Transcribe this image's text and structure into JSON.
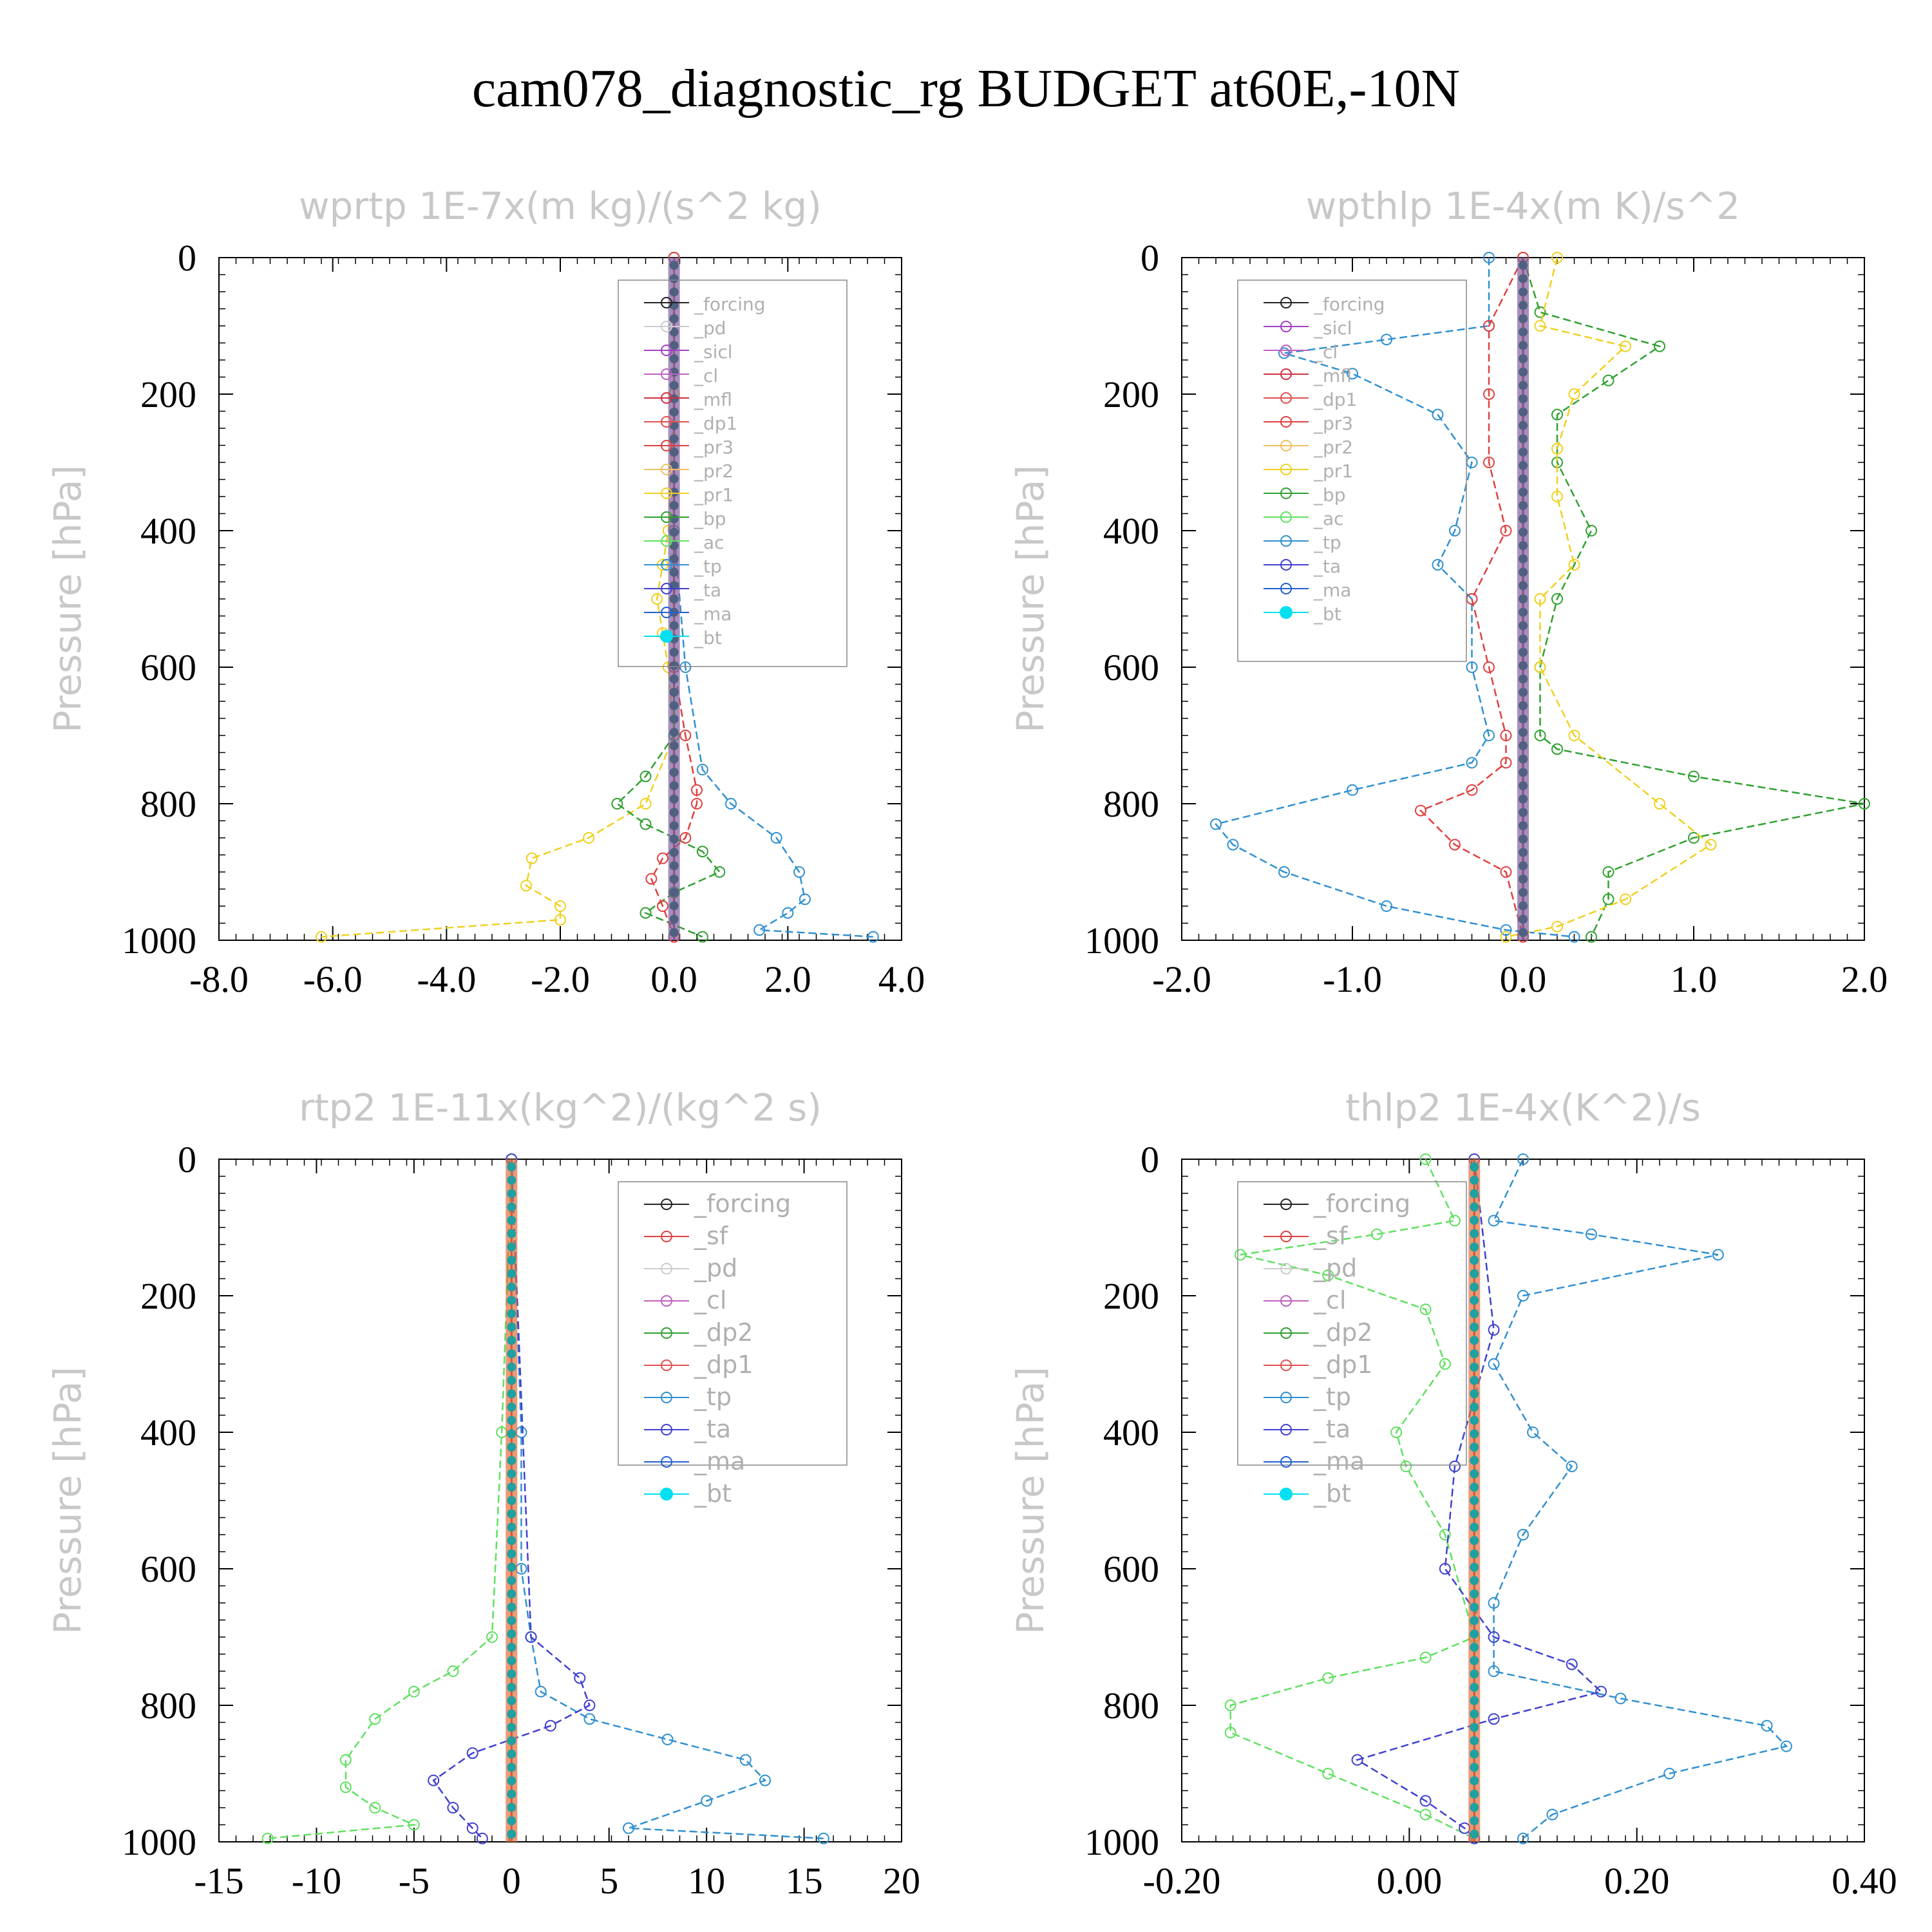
{
  "figure_title": "cam078_diagnostic_rg  BUDGET at60E,-10N",
  "colors": {
    "forcing": "#222222",
    "pd": "#cccccc",
    "sicl": "#a040c0",
    "cl": "#c060c0",
    "mfl": "#d03040",
    "dp1": "#e05050",
    "pr3": "#e04040",
    "pr2": "#f0c060",
    "pr1": "#f0d020",
    "bp": "#30a030",
    "ac": "#60e060",
    "tp": "#3090d0",
    "ta": "#4040d0",
    "ma": "#2060d0",
    "bt": "#00e0f0",
    "sf": "#e04040",
    "dp2": "#30a030",
    "zero_line": "#c02020"
  },
  "chart_data": [
    {
      "type": "line",
      "title": "wprtp  1E-7x(m kg)/(s^2 kg)",
      "ylabel": "Pressure [hPa]",
      "xlim": [
        -8,
        4
      ],
      "ylim": [
        1000,
        0
      ],
      "xticks": [
        "-8.0",
        "-6.0",
        "-4.0",
        "-2.0",
        "0.0",
        "2.0",
        "4.0"
      ],
      "yticks": [
        "0",
        "200",
        "400",
        "600",
        "800",
        "1000"
      ],
      "legend": [
        "_forcing",
        "_pd",
        "_sicl",
        "_cl",
        "_mfl",
        "_dp1",
        "_pr3",
        "_pr2",
        "_pr1",
        "_bp",
        "_ac",
        "_tp",
        "_ta",
        "_ma",
        "_bt"
      ],
      "series": [
        {
          "name": "_pr1",
          "key": "pr1",
          "x": [
            0,
            0,
            -0.1,
            -0.2,
            -0.3,
            -0.2,
            -0.1,
            0,
            -0.5,
            -1.5,
            -2.5,
            -2.6,
            -2,
            -2,
            -6.2
          ],
          "y": [
            0,
            200,
            400,
            450,
            500,
            550,
            600,
            700,
            800,
            850,
            880,
            920,
            950,
            970,
            995
          ]
        },
        {
          "name": "_bp",
          "key": "bp",
          "x": [
            0,
            0,
            0,
            -0.5,
            -1,
            -0.5,
            0.5,
            0.8,
            0,
            -0.5,
            0.5
          ],
          "y": [
            0,
            600,
            700,
            760,
            800,
            830,
            870,
            900,
            930,
            960,
            995
          ]
        },
        {
          "name": "_tp",
          "key": "tp",
          "x": [
            0,
            0,
            0.2,
            0.5,
            1,
            1.8,
            2.2,
            2.3,
            2,
            1.5,
            3.5
          ],
          "y": [
            0,
            400,
            600,
            750,
            800,
            850,
            900,
            940,
            960,
            985,
            995
          ]
        },
        {
          "name": "_pr3",
          "key": "pr3",
          "x": [
            0,
            0,
            0.2,
            0.4,
            0.4,
            0.2,
            -0.2,
            -0.4,
            -0.2,
            0
          ],
          "y": [
            0,
            600,
            700,
            780,
            800,
            850,
            880,
            910,
            950,
            995
          ]
        },
        {
          "name": "_bt",
          "key": "bt",
          "x": [
            0,
            0
          ],
          "y": [
            0,
            995
          ]
        }
      ]
    },
    {
      "type": "line",
      "title": "wpthlp  1E-4x(m K)/s^2",
      "ylabel": "Pressure [hPa]",
      "xlim": [
        -2,
        2
      ],
      "ylim": [
        1000,
        0
      ],
      "xticks": [
        "-2.0",
        "-1.0",
        "0.0",
        "1.0",
        "2.0"
      ],
      "yticks": [
        "0",
        "200",
        "400",
        "600",
        "800",
        "1000"
      ],
      "legend": [
        "_forcing",
        "_sicl",
        "_cl",
        "_mfl",
        "_dp1",
        "_pr3",
        "_pr2",
        "_pr1",
        "_bp",
        "_ac",
        "_tp",
        "_ta",
        "_ma",
        "_bt"
      ],
      "series": [
        {
          "name": "_tp",
          "key": "tp",
          "x": [
            -0.2,
            -0.2,
            -0.8,
            -1.4,
            -1.0,
            -0.5,
            -0.3,
            -0.4,
            -0.5,
            -0.3,
            -0.3,
            -0.2,
            -0.3,
            -1.0,
            -1.8,
            -1.7,
            -1.4,
            -0.8,
            -0.1,
            0.3
          ],
          "y": [
            0,
            100,
            120,
            140,
            170,
            230,
            300,
            400,
            450,
            500,
            600,
            700,
            740,
            780,
            830,
            860,
            900,
            950,
            985,
            995
          ]
        },
        {
          "name": "_bp",
          "key": "bp",
          "x": [
            0,
            0.1,
            0.8,
            0.5,
            0.2,
            0.2,
            0.4,
            0.2,
            0.1,
            0.1,
            0.2,
            1.0,
            2.0,
            1.0,
            0.5,
            0.5,
            0.4
          ],
          "y": [
            0,
            80,
            130,
            180,
            230,
            300,
            400,
            500,
            600,
            700,
            720,
            760,
            800,
            850,
            900,
            940,
            995
          ]
        },
        {
          "name": "_pr1",
          "key": "pr1",
          "x": [
            0.2,
            0.1,
            0.6,
            0.3,
            0.2,
            0.2,
            0.3,
            0.1,
            0.1,
            0.3,
            0.8,
            1.1,
            0.6,
            0.2,
            -0.1
          ],
          "y": [
            0,
            100,
            130,
            200,
            280,
            350,
            450,
            500,
            600,
            700,
            800,
            860,
            940,
            980,
            995
          ]
        },
        {
          "name": "_pr3",
          "key": "pr3",
          "x": [
            0,
            -0.2,
            -0.2,
            -0.2,
            -0.1,
            -0.3,
            -0.2,
            -0.1,
            -0.1,
            -0.3,
            -0.6,
            -0.4,
            -0.1,
            0
          ],
          "y": [
            0,
            100,
            200,
            300,
            400,
            500,
            600,
            700,
            740,
            780,
            810,
            860,
            900,
            995
          ]
        },
        {
          "name": "_bt",
          "key": "bt",
          "x": [
            0,
            0
          ],
          "y": [
            0,
            995
          ]
        }
      ]
    },
    {
      "type": "line",
      "title": "rtp2  1E-11x(kg^2)/(kg^2 s)",
      "ylabel": "Pressure [hPa]",
      "xlim": [
        -15,
        20
      ],
      "ylim": [
        1000,
        0
      ],
      "xticks": [
        "-15",
        "-10",
        "-5",
        "0",
        "5",
        "10",
        "15",
        "20"
      ],
      "yticks": [
        "0",
        "200",
        "400",
        "600",
        "800",
        "1000"
      ],
      "legend": [
        "_forcing",
        "_sf",
        "_pd",
        "_cl",
        "_dp2",
        "_dp1",
        "_tp",
        "_ta",
        "_ma",
        "_bt"
      ],
      "series": [
        {
          "name": "_dp1",
          "key": "ac",
          "x": [
            0,
            -0.5,
            -1,
            -3,
            -5,
            -7,
            -8.5,
            -8.5,
            -7,
            -5,
            -12.5
          ],
          "y": [
            0,
            400,
            700,
            750,
            780,
            820,
            880,
            920,
            950,
            975,
            995
          ]
        },
        {
          "name": "_tp",
          "key": "tp",
          "x": [
            0,
            0.5,
            0.5,
            1,
            1.5,
            4,
            8,
            12,
            13,
            10,
            6,
            16
          ],
          "y": [
            0,
            400,
            600,
            700,
            780,
            820,
            850,
            880,
            910,
            940,
            980,
            995
          ]
        },
        {
          "name": "_ta",
          "key": "ta",
          "x": [
            0,
            1,
            3.5,
            4,
            2,
            -2,
            -4,
            -3,
            -2,
            -1.5
          ],
          "y": [
            0,
            700,
            760,
            800,
            830,
            870,
            910,
            950,
            980,
            995
          ]
        },
        {
          "name": "_bt",
          "key": "bt",
          "x": [
            0,
            0
          ],
          "y": [
            0,
            995
          ]
        }
      ]
    },
    {
      "type": "line",
      "title": "thlp2  1E-4x(K^2)/s",
      "ylabel": "Pressure [hPa]",
      "xlim": [
        -0.3,
        0.4
      ],
      "ylim": [
        1000,
        0
      ],
      "xticks": [
        "-0.20",
        "0.00",
        "0.20",
        "0.40"
      ],
      "yticks": [
        "0",
        "200",
        "400",
        "600",
        "800",
        "1000"
      ],
      "legend": [
        "_forcing",
        "_sf",
        "_pd",
        "_cl",
        "_dp2",
        "_dp1",
        "_tp",
        "_ta",
        "_ma",
        "_bt"
      ],
      "series": [
        {
          "name": "_dp1",
          "key": "ac",
          "x": [
            -0.05,
            -0.02,
            -0.1,
            -0.24,
            -0.15,
            -0.05,
            -0.03,
            -0.08,
            -0.07,
            -0.03,
            0,
            -0.05,
            -0.15,
            -0.25,
            -0.25,
            -0.15,
            -0.05,
            0
          ],
          "y": [
            0,
            90,
            110,
            140,
            170,
            220,
            300,
            400,
            450,
            550,
            700,
            730,
            760,
            800,
            840,
            900,
            960,
            995
          ]
        },
        {
          "name": "_tp",
          "key": "tp",
          "x": [
            0.05,
            0.02,
            0.12,
            0.25,
            0.05,
            0.02,
            0.06,
            0.1,
            0.05,
            0.02,
            0.02,
            0.15,
            0.3,
            0.32,
            0.2,
            0.08,
            0.05
          ],
          "y": [
            0,
            90,
            110,
            140,
            200,
            300,
            400,
            450,
            550,
            650,
            750,
            790,
            830,
            860,
            900,
            960,
            995
          ]
        },
        {
          "name": "_ta",
          "key": "ta",
          "x": [
            0,
            0.02,
            -0.02,
            -0.03,
            0.02,
            0.1,
            0.13,
            0.02,
            -0.12,
            -0.05,
            -0.01,
            0
          ],
          "y": [
            0,
            250,
            450,
            600,
            700,
            740,
            780,
            820,
            880,
            940,
            980,
            995
          ]
        },
        {
          "name": "_bt",
          "key": "bt",
          "x": [
            0,
            0
          ],
          "y": [
            0,
            995
          ]
        }
      ]
    }
  ]
}
